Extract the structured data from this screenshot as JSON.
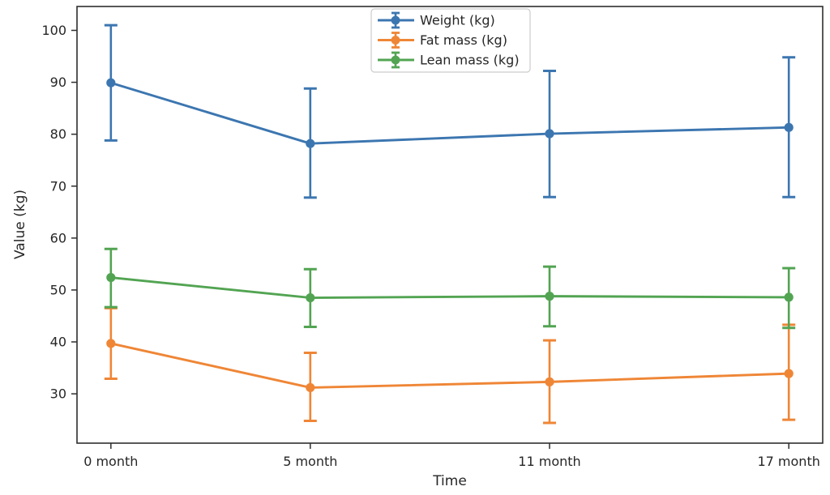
{
  "chart_data": {
    "type": "line",
    "title": "",
    "xlabel": "Time",
    "ylabel": "Value (kg)",
    "categories": [
      "0 month",
      "5 month",
      "11 month",
      "17 month"
    ],
    "x_values_months": [
      0,
      5,
      11,
      17
    ],
    "xlim": [
      -0.85,
      17.85
    ],
    "ylim": [
      20.5,
      104.6
    ],
    "yticks": [
      30,
      40,
      50,
      60,
      70,
      80,
      90,
      100
    ],
    "grid": false,
    "legend_position": "upper center",
    "error_bars": true,
    "colors": {
      "weight": "#3c76b0",
      "fat_mass": "#ef8636",
      "lean_mass": "#52a452",
      "spine": "#2e2e2e",
      "text": "#262626",
      "legend_border": "#cccccc"
    },
    "series": [
      {
        "name": "Weight (kg)",
        "color": "#3c76b0",
        "values": [
          89.9,
          78.2,
          80.1,
          81.3
        ],
        "err_low": [
          11.1,
          10.4,
          12.2,
          13.4
        ],
        "err_high": [
          11.1,
          10.6,
          12.1,
          13.5
        ]
      },
      {
        "name": "Fat mass (kg)",
        "color": "#ef8636",
        "values": [
          39.7,
          31.2,
          32.3,
          33.9
        ],
        "err_low": [
          6.8,
          6.4,
          7.9,
          8.9
        ],
        "err_high": [
          6.8,
          6.7,
          8.0,
          9.4
        ]
      },
      {
        "name": "Lean mass (kg)",
        "color": "#52a452",
        "values": [
          52.4,
          48.5,
          48.8,
          48.6
        ],
        "err_low": [
          5.7,
          5.6,
          5.8,
          5.9
        ],
        "err_high": [
          5.5,
          5.5,
          5.7,
          5.6
        ]
      }
    ]
  }
}
